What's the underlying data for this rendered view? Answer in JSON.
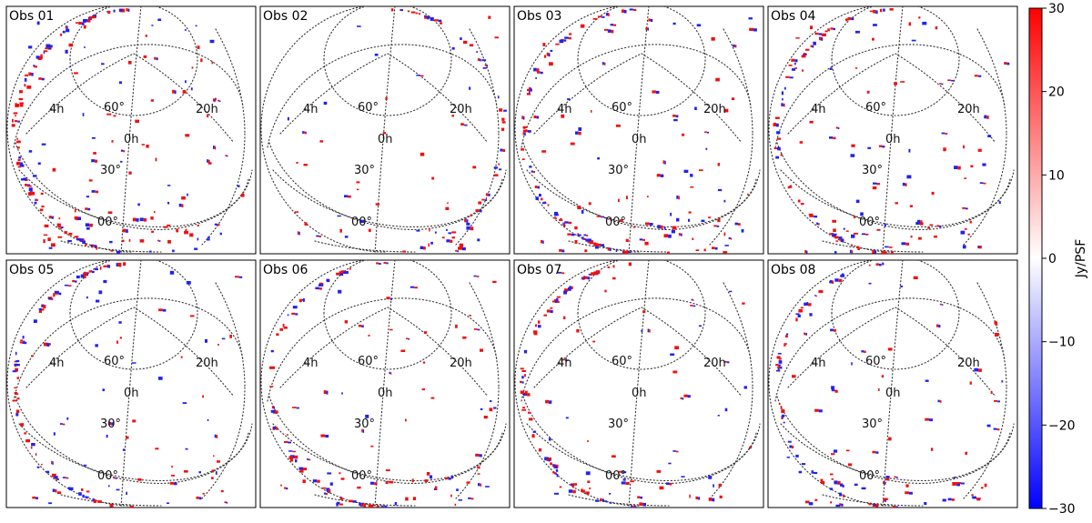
{
  "chart_data": {
    "type": "heatmap",
    "projection": "orthographic all-sky",
    "panels": [
      {
        "title": "Obs 01",
        "source_density": 1.0,
        "limb_side": "left"
      },
      {
        "title": "Obs 02",
        "source_density": 0.25,
        "limb_side": "right"
      },
      {
        "title": "Obs 03",
        "source_density": 0.7,
        "limb_side": "left"
      },
      {
        "title": "Obs 04",
        "source_density": 0.6,
        "limb_side": "left"
      },
      {
        "title": "Obs 05",
        "source_density": 0.55,
        "limb_side": "left"
      },
      {
        "title": "Obs 06",
        "source_density": 0.5,
        "limb_side": "left"
      },
      {
        "title": "Obs 07",
        "source_density": 0.5,
        "limb_side": "left"
      },
      {
        "title": "Obs 08",
        "source_density": 0.5,
        "limb_side": "bottom"
      }
    ],
    "grid_labels": {
      "ra": [
        "4h",
        "0h",
        "20h"
      ],
      "dec": [
        "60°",
        "30°",
        "00°"
      ]
    },
    "colorbar": {
      "label": "Jy/PSF",
      "range": [
        -30,
        30
      ],
      "ticks": [
        30,
        20,
        10,
        0,
        -10,
        -20,
        -30
      ],
      "colors": {
        "low": "#0000ff",
        "mid": "#ffffff",
        "high": "#ff0000"
      }
    },
    "layout": "2 rows x 4 columns"
  }
}
